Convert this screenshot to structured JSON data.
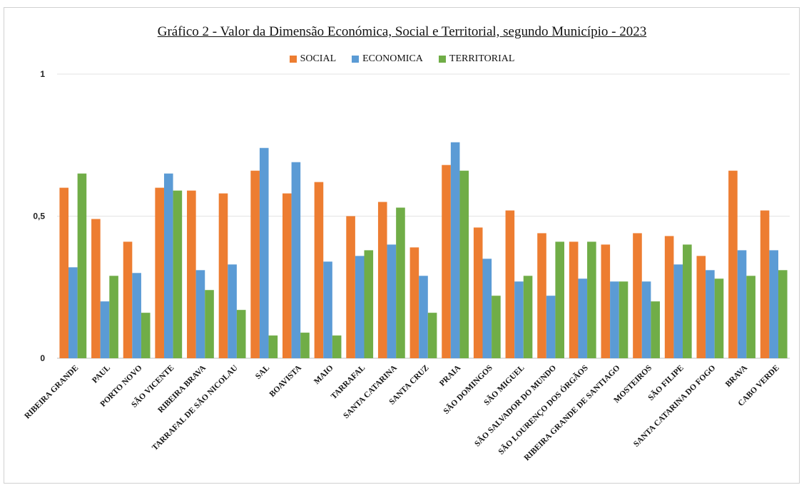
{
  "chart_data": {
    "type": "bar",
    "title": "Gráfico 2 - Valor da Dimensão Económica, Social e Territorial, segundo Município - 2023",
    "xlabel": "",
    "ylabel": "",
    "ylim": [
      0,
      1
    ],
    "yticks": [
      {
        "value": 0,
        "label": "0"
      },
      {
        "value": 0.5,
        "label": "0,5"
      },
      {
        "value": 1,
        "label": "1"
      }
    ],
    "grid": true,
    "legend_position": "top-center",
    "categories": [
      "RIBEIRA GRANDE",
      "PAUL",
      "PORTO NOVO",
      "SÃO VICENTE",
      "RIBEIRA BRAVA",
      "TARRAFAL DE SÃO NICOLAU",
      "SAL",
      "BOAVISTA",
      "MAIO",
      "TARRAFAL",
      "SANTA CATARINA",
      "SANTA CRUZ",
      "PRAIA",
      "SÃO DOMINGOS",
      "SÃO MIGUEL",
      "SÃO SALVADOR DO MUNDO",
      "SÃO LOURENÇO DOS ÓRGÃOS",
      "RIBEIRA GRANDE DE SANTIAGO",
      "MOSTEIROS",
      "SÃO FILIPE",
      "SANTA CATARINA DO FOGO",
      "BRAVA",
      "CABO VERDE"
    ],
    "series": [
      {
        "name": "SOCIAL",
        "color": "#ED7D31",
        "values": [
          0.6,
          0.49,
          0.41,
          0.6,
          0.59,
          0.58,
          0.66,
          0.58,
          0.62,
          0.5,
          0.55,
          0.39,
          0.68,
          0.46,
          0.52,
          0.44,
          0.41,
          0.4,
          0.44,
          0.43,
          0.36,
          0.66,
          0.52
        ]
      },
      {
        "name": "ECONOMICA",
        "color": "#5B9BD5",
        "values": [
          0.32,
          0.2,
          0.3,
          0.65,
          0.31,
          0.33,
          0.74,
          0.69,
          0.34,
          0.36,
          0.4,
          0.29,
          0.76,
          0.35,
          0.27,
          0.22,
          0.28,
          0.27,
          0.27,
          0.33,
          0.31,
          0.38,
          0.38
        ]
      },
      {
        "name": "TERRITORIAL",
        "color": "#70AD47",
        "values": [
          0.65,
          0.29,
          0.16,
          0.59,
          0.24,
          0.17,
          0.08,
          0.09,
          0.08,
          0.38,
          0.53,
          0.16,
          0.66,
          0.22,
          0.29,
          0.41,
          0.41,
          0.27,
          0.2,
          0.4,
          0.28,
          0.29,
          0.31
        ]
      }
    ]
  }
}
